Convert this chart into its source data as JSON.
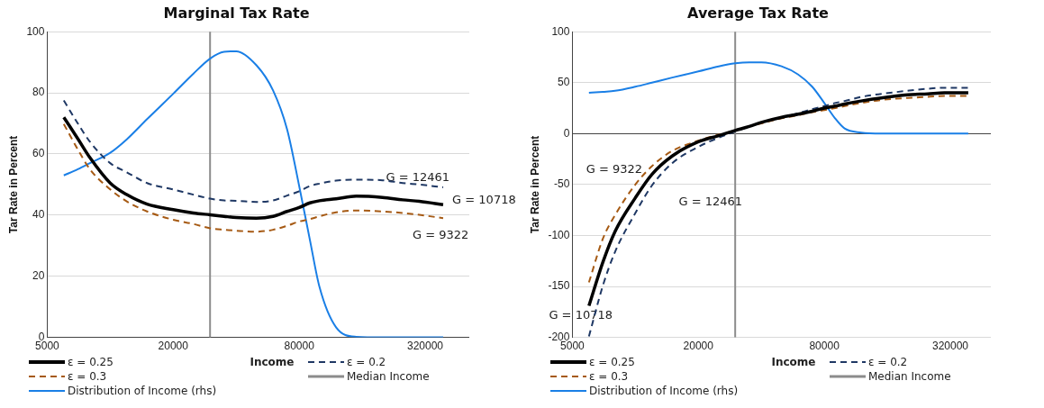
{
  "chart_data": [
    {
      "type": "line",
      "title": "Marginal Tax Rate",
      "xlabel": "Income",
      "ylabel": "Tar Rate in Percent",
      "log": "x",
      "xlim": [
        5000,
        520000
      ],
      "xticks": [
        5000,
        20000,
        80000,
        320000
      ],
      "ylim": [
        0,
        100
      ],
      "yticks": [
        0,
        20,
        40,
        60,
        80,
        100
      ],
      "grid": "y",
      "legend": "bottom",
      "marker": "none",
      "x": [
        6000,
        7000,
        8000,
        10000,
        12000,
        15000,
        20000,
        25000,
        30000,
        35000,
        40000,
        50000,
        60000,
        70000,
        80000,
        90000,
        100000,
        120000,
        150000,
        200000,
        250000,
        300000,
        390000
      ],
      "series": [
        {
          "name": "ε = 0.25",
          "color": "#000000",
          "line_style": "solid",
          "values": [
            72,
            65,
            58.8,
            50.5,
            46.7,
            43.6,
            41.8,
            40.7,
            40.1,
            39.6,
            39.2,
            39,
            39.6,
            41.2,
            42.5,
            44,
            44.7,
            45.3,
            46.2,
            45.8,
            45,
            44.5,
            43.4
          ]
        },
        {
          "name": "ε = 0.2",
          "color": "#1f3864",
          "line_style": "dashed",
          "values": [
            77.5,
            70,
            64,
            57,
            54,
            50.5,
            48.4,
            46.7,
            45.4,
            44.8,
            44.7,
            44.3,
            44.8,
            46.4,
            47.8,
            49.5,
            50.3,
            51.3,
            51.6,
            51.4,
            50.5,
            50,
            49.1
          ]
        },
        {
          "name": "ε = 0.3",
          "color": "#a65a14",
          "line_style": "dashed",
          "values": [
            69.8,
            61.5,
            55,
            48.4,
            44.5,
            41.2,
            38.5,
            37.1,
            35.7,
            35.2,
            34.9,
            34.6,
            35.2,
            36.5,
            37.9,
            38.7,
            39.6,
            40.9,
            41.5,
            41.2,
            40.7,
            40.1,
            39
          ]
        },
        {
          "name": "Distribution of Income (rhs)",
          "color": "#1a7fe6",
          "line_style": "solid",
          "values": [
            53,
            55,
            57,
            60.4,
            64.8,
            71.4,
            79.7,
            86.3,
            91.2,
            93.4,
            93.6,
            89,
            80.8,
            68.1,
            49.5,
            31.9,
            16.5,
            3.3,
            0.2,
            0,
            0,
            0,
            0
          ]
        }
      ],
      "ref_lines": [
        {
          "axis": "x",
          "value": 30000,
          "label": "Median Income",
          "color": "#8c8c8c"
        }
      ],
      "annotations": [
        "G = 12461",
        "G = 10718",
        "G = 9322"
      ]
    },
    {
      "type": "line",
      "title": "Average Tax Rate",
      "xlabel": "Income",
      "ylabel": "Tar Rate in Percent",
      "log": "x",
      "xlim": [
        5000,
        500000
      ],
      "xticks": [
        5000,
        20000,
        80000,
        320000
      ],
      "ylim": [
        -200,
        100
      ],
      "yticks": [
        -200,
        -150,
        -100,
        -50,
        0,
        50,
        100
      ],
      "grid": "y",
      "legend": "bottom",
      "marker": "none",
      "x": [
        6000,
        7000,
        8000,
        10000,
        12000,
        15000,
        20000,
        25000,
        30000,
        35000,
        40000,
        50000,
        60000,
        70000,
        80000,
        90000,
        100000,
        120000,
        150000,
        200000,
        250000,
        300000,
        390000
      ],
      "series": [
        {
          "name": "ε = 0.25",
          "color": "#000000",
          "line_style": "solid",
          "values": [
            -169,
            -126,
            -96,
            -63,
            -40,
            -22,
            -8,
            -2,
            3,
            7,
            11,
            16,
            19,
            22,
            25,
            27,
            29,
            32,
            35,
            38,
            39,
            40,
            40
          ]
        },
        {
          "name": "ε = 0.2",
          "color": "#1f3864",
          "line_style": "dashed",
          "values": [
            -199,
            -149,
            -116,
            -78,
            -51,
            -29,
            -13,
            -4,
            2,
            7,
            11,
            16,
            20,
            24,
            27,
            30,
            32,
            36,
            39,
            42,
            44,
            45,
            45
          ]
        },
        {
          "name": "ε = 0.3",
          "color": "#a65a14",
          "line_style": "dashed",
          "values": [
            -146,
            -103,
            -80,
            -50,
            -32,
            -17,
            -7,
            -1,
            3,
            7,
            10,
            15,
            18,
            21,
            23,
            25,
            27,
            30,
            33,
            35,
            36,
            37,
            37
          ]
        },
        {
          "name": "Distribution of Income (rhs)",
          "color": "#1a7fe6",
          "line_style": "solid",
          "values": [
            40,
            41,
            42,
            46,
            50,
            55,
            61,
            66,
            69,
            70,
            70,
            66,
            58,
            46,
            30,
            15,
            5,
            1,
            0,
            0,
            0,
            0,
            0
          ]
        }
      ],
      "ref_lines": [
        {
          "axis": "x",
          "value": 30000,
          "label": "Median Income",
          "color": "#8c8c8c"
        }
      ],
      "annotations": [
        "G = 9322",
        "G = 12461",
        "G = 10718"
      ]
    }
  ]
}
